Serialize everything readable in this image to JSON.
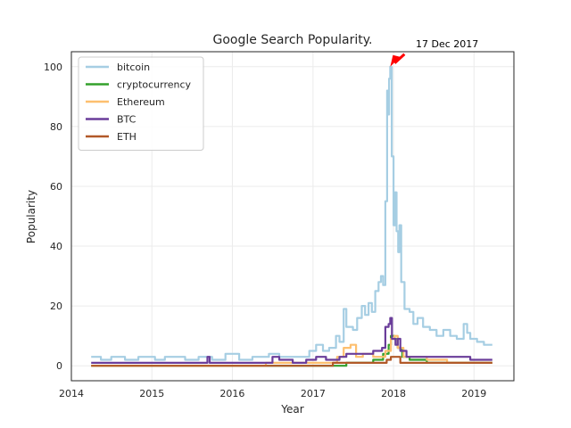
{
  "chart_data": {
    "type": "line",
    "title": "Google Search Popularity.",
    "xlabel": "Year",
    "ylabel": "Popularity",
    "xlim": [
      "2014-01-01",
      "2019-07-01"
    ],
    "ylim": [
      -5,
      105
    ],
    "x_ticks": [
      {
        "value": "2014-01-01",
        "label": "2014"
      },
      {
        "value": "2015-01-01",
        "label": "2015"
      },
      {
        "value": "2016-01-01",
        "label": "2016"
      },
      {
        "value": "2017-01-01",
        "label": "2017"
      },
      {
        "value": "2018-01-01",
        "label": "2018"
      },
      {
        "value": "2019-01-01",
        "label": "2019"
      }
    ],
    "y_ticks": [
      0,
      20,
      40,
      60,
      80,
      100
    ],
    "grid": true,
    "legend_position": "top-left",
    "annotation": {
      "text": "17 Dec 2017",
      "x": "2017-12-17",
      "y": 100,
      "arrow_color": "#ff0000"
    },
    "series": [
      {
        "name": "bitcoin",
        "color": "#a6cee3",
        "points": [
          [
            "2014-04-01",
            3
          ],
          [
            "2014-05-15",
            2
          ],
          [
            "2014-07-01",
            3
          ],
          [
            "2014-09-01",
            2
          ],
          [
            "2014-11-01",
            3
          ],
          [
            "2015-01-15",
            2
          ],
          [
            "2015-03-01",
            3
          ],
          [
            "2015-06-01",
            2
          ],
          [
            "2015-08-01",
            3
          ],
          [
            "2015-10-01",
            2
          ],
          [
            "2015-12-01",
            4
          ],
          [
            "2016-02-01",
            2
          ],
          [
            "2016-04-01",
            3
          ],
          [
            "2016-06-15",
            4
          ],
          [
            "2016-08-01",
            3
          ],
          [
            "2016-10-01",
            3
          ],
          [
            "2016-12-15",
            5
          ],
          [
            "2017-01-15",
            7
          ],
          [
            "2017-02-15",
            5
          ],
          [
            "2017-03-15",
            6
          ],
          [
            "2017-04-15",
            10
          ],
          [
            "2017-05-01",
            8
          ],
          [
            "2017-05-20",
            19
          ],
          [
            "2017-06-01",
            13
          ],
          [
            "2017-07-01",
            12
          ],
          [
            "2017-07-20",
            16
          ],
          [
            "2017-08-10",
            20
          ],
          [
            "2017-08-25",
            17
          ],
          [
            "2017-09-10",
            21
          ],
          [
            "2017-09-25",
            18
          ],
          [
            "2017-10-10",
            25
          ],
          [
            "2017-10-25",
            28
          ],
          [
            "2017-11-05",
            30
          ],
          [
            "2017-11-15",
            27
          ],
          [
            "2017-11-25",
            55
          ],
          [
            "2017-12-03",
            92
          ],
          [
            "2017-12-08",
            84
          ],
          [
            "2017-12-12",
            96
          ],
          [
            "2017-12-17",
            100
          ],
          [
            "2017-12-24",
            70
          ],
          [
            "2018-01-01",
            47
          ],
          [
            "2018-01-08",
            58
          ],
          [
            "2018-01-15",
            45
          ],
          [
            "2018-01-22",
            38
          ],
          [
            "2018-01-28",
            47
          ],
          [
            "2018-02-05",
            28
          ],
          [
            "2018-02-20",
            19
          ],
          [
            "2018-03-15",
            18
          ],
          [
            "2018-04-01",
            14
          ],
          [
            "2018-04-20",
            16
          ],
          [
            "2018-05-15",
            13
          ],
          [
            "2018-06-15",
            12
          ],
          [
            "2018-07-15",
            10
          ],
          [
            "2018-08-15",
            12
          ],
          [
            "2018-09-15",
            10
          ],
          [
            "2018-10-15",
            9
          ],
          [
            "2018-11-15",
            14
          ],
          [
            "2018-12-01",
            11
          ],
          [
            "2018-12-15",
            9
          ],
          [
            "2019-01-15",
            8
          ],
          [
            "2019-02-15",
            7
          ],
          [
            "2019-03-25",
            7
          ]
        ]
      },
      {
        "name": "cryptocurrency",
        "color": "#33a02c",
        "points": [
          [
            "2014-04-01",
            0
          ],
          [
            "2017-03-01",
            0
          ],
          [
            "2017-05-01",
            0
          ],
          [
            "2017-06-01",
            1
          ],
          [
            "2017-08-01",
            1
          ],
          [
            "2017-10-01",
            2
          ],
          [
            "2017-11-15",
            4
          ],
          [
            "2017-12-10",
            7
          ],
          [
            "2017-12-20",
            10
          ],
          [
            "2018-01-05",
            9
          ],
          [
            "2018-01-20",
            6
          ],
          [
            "2018-02-10",
            3
          ],
          [
            "2018-03-15",
            2
          ],
          [
            "2018-06-01",
            1
          ],
          [
            "2018-12-01",
            1
          ],
          [
            "2019-03-25",
            1
          ]
        ]
      },
      {
        "name": "Ethereum",
        "color": "#fdbf6f",
        "points": [
          [
            "2014-04-01",
            0
          ],
          [
            "2016-06-01",
            1
          ],
          [
            "2017-03-01",
            1
          ],
          [
            "2017-04-20",
            3
          ],
          [
            "2017-05-20",
            6
          ],
          [
            "2017-06-20",
            7
          ],
          [
            "2017-07-15",
            3
          ],
          [
            "2017-08-15",
            4
          ],
          [
            "2017-10-01",
            3
          ],
          [
            "2017-11-25",
            5
          ],
          [
            "2017-12-20",
            9
          ],
          [
            "2018-01-05",
            10
          ],
          [
            "2018-01-20",
            6
          ],
          [
            "2018-02-15",
            3
          ],
          [
            "2018-04-01",
            3
          ],
          [
            "2018-06-01",
            2
          ],
          [
            "2018-09-01",
            1
          ],
          [
            "2019-03-25",
            1
          ]
        ]
      },
      {
        "name": "BTC",
        "color": "#6a3d9a",
        "points": [
          [
            "2014-04-01",
            1
          ],
          [
            "2015-01-01",
            1
          ],
          [
            "2015-09-01",
            1
          ],
          [
            "2015-09-10",
            3
          ],
          [
            "2015-09-20",
            1
          ],
          [
            "2016-06-01",
            1
          ],
          [
            "2016-07-01",
            3
          ],
          [
            "2016-08-01",
            2
          ],
          [
            "2016-10-01",
            1
          ],
          [
            "2016-12-01",
            2
          ],
          [
            "2017-01-15",
            3
          ],
          [
            "2017-03-01",
            2
          ],
          [
            "2017-05-01",
            3
          ],
          [
            "2017-06-01",
            4
          ],
          [
            "2017-08-01",
            4
          ],
          [
            "2017-10-01",
            5
          ],
          [
            "2017-11-10",
            6
          ],
          [
            "2017-11-25",
            13
          ],
          [
            "2017-12-10",
            14
          ],
          [
            "2017-12-17",
            16
          ],
          [
            "2017-12-25",
            9
          ],
          [
            "2018-01-10",
            7
          ],
          [
            "2018-01-20",
            9
          ],
          [
            "2018-02-01",
            5
          ],
          [
            "2018-03-01",
            3
          ],
          [
            "2018-05-01",
            3
          ],
          [
            "2018-08-01",
            3
          ],
          [
            "2018-11-15",
            3
          ],
          [
            "2018-12-15",
            2
          ],
          [
            "2019-03-25",
            2
          ]
        ]
      },
      {
        "name": "ETH",
        "color": "#b15928",
        "points": [
          [
            "2014-04-01",
            0
          ],
          [
            "2016-06-01",
            0
          ],
          [
            "2017-04-01",
            1
          ],
          [
            "2017-06-01",
            1
          ],
          [
            "2017-10-01",
            1
          ],
          [
            "2017-12-01",
            2
          ],
          [
            "2017-12-20",
            3
          ],
          [
            "2018-01-10",
            3
          ],
          [
            "2018-02-01",
            1
          ],
          [
            "2018-06-01",
            1
          ],
          [
            "2019-03-25",
            1
          ]
        ]
      }
    ]
  }
}
